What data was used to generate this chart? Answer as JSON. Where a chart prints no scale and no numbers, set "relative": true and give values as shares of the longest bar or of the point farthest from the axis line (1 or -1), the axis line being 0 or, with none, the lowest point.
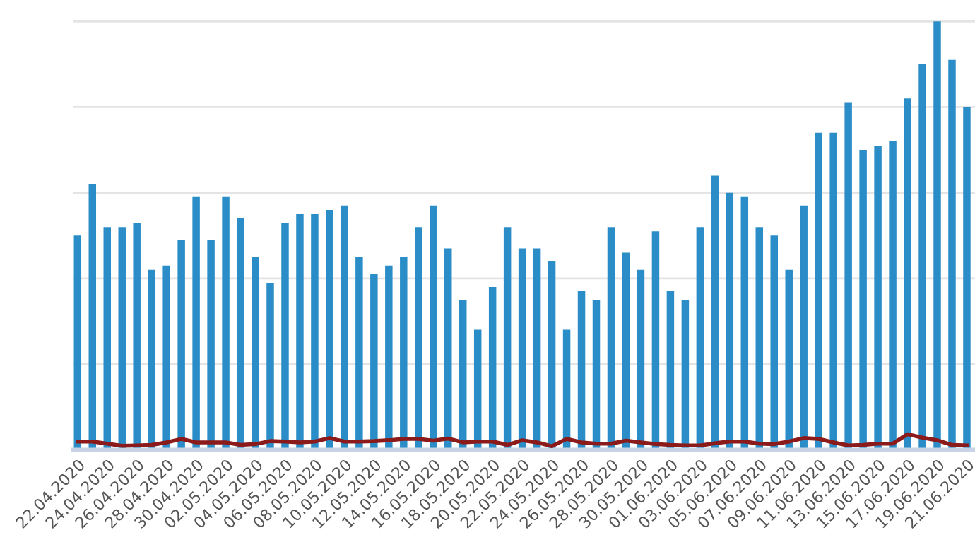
{
  "chart_data": {
    "type": "bar",
    "relative": true,
    "grid": "y",
    "tick_labels": "x",
    "categories": [
      "22.04.2020",
      null,
      "24.04.2020",
      null,
      "26.04.2020",
      null,
      "28.04.2020",
      null,
      "30.04.2020",
      null,
      "02.05.2020",
      null,
      "04.05.2020",
      null,
      "06.05.2020",
      null,
      "08.05.2020",
      null,
      "10.05.2020",
      null,
      "12.05.2020",
      null,
      "14.05.2020",
      null,
      "16.05.2020",
      null,
      "18.05.2020",
      null,
      "20.05.2020",
      null,
      "22.05.2020",
      null,
      "24.05.2020",
      null,
      "26.05.2020",
      null,
      "28.05.2020",
      null,
      "30.05.2020",
      null,
      "01.06.2020",
      null,
      "03.06.2020",
      null,
      "05.06.2020",
      null,
      "07.06.2020",
      null,
      "09.06.2020",
      null,
      "11.06.2020",
      null,
      "13.06.2020",
      null,
      "15.06.2020",
      null,
      "17.06.2020",
      null,
      "19.06.2020",
      null,
      "21.06.2020"
    ],
    "series": [
      {
        "color": "#2a8dc8",
        "values": [
          0.5,
          0.62,
          0.52,
          0.52,
          0.53,
          0.42,
          0.43,
          0.49,
          0.59,
          0.49,
          0.59,
          0.54,
          0.45,
          0.39,
          0.53,
          0.55,
          0.55,
          0.56,
          0.57,
          0.45,
          0.41,
          0.43,
          0.45,
          0.52,
          0.57,
          0.47,
          0.35,
          0.28,
          0.38,
          0.52,
          0.47,
          0.47,
          0.44,
          0.28,
          0.37,
          0.35,
          0.52,
          0.46,
          0.42,
          0.51,
          0.37,
          0.35,
          0.52,
          0.64,
          0.6,
          0.59,
          0.52,
          0.5,
          0.42,
          0.57,
          0.74,
          0.74,
          0.81,
          0.7,
          0.71,
          0.72,
          0.82,
          0.9,
          1,
          0.91,
          0.8
        ]
      },
      {
        "type": "line",
        "color": "#8b1a1a",
        "values": [
          0.019,
          0.019,
          0.014,
          0.009,
          0.01,
          0.011,
          0.017,
          0.025,
          0.017,
          0.017,
          0.017,
          0.011,
          0.013,
          0.02,
          0.019,
          0.017,
          0.019,
          0.027,
          0.019,
          0.019,
          0.02,
          0.022,
          0.025,
          0.025,
          0.021,
          0.026,
          0.017,
          0.019,
          0.019,
          0.011,
          0.022,
          0.017,
          0.008,
          0.025,
          0.017,
          0.014,
          0.014,
          0.021,
          0.017,
          0.013,
          0.011,
          0.01,
          0.01,
          0.015,
          0.019,
          0.019,
          0.014,
          0.013,
          0.019,
          0.027,
          0.025,
          0.017,
          0.01,
          0.011,
          0.014,
          0.014,
          0.036,
          0.028,
          0.022,
          0.011,
          0.01
        ]
      }
    ]
  }
}
